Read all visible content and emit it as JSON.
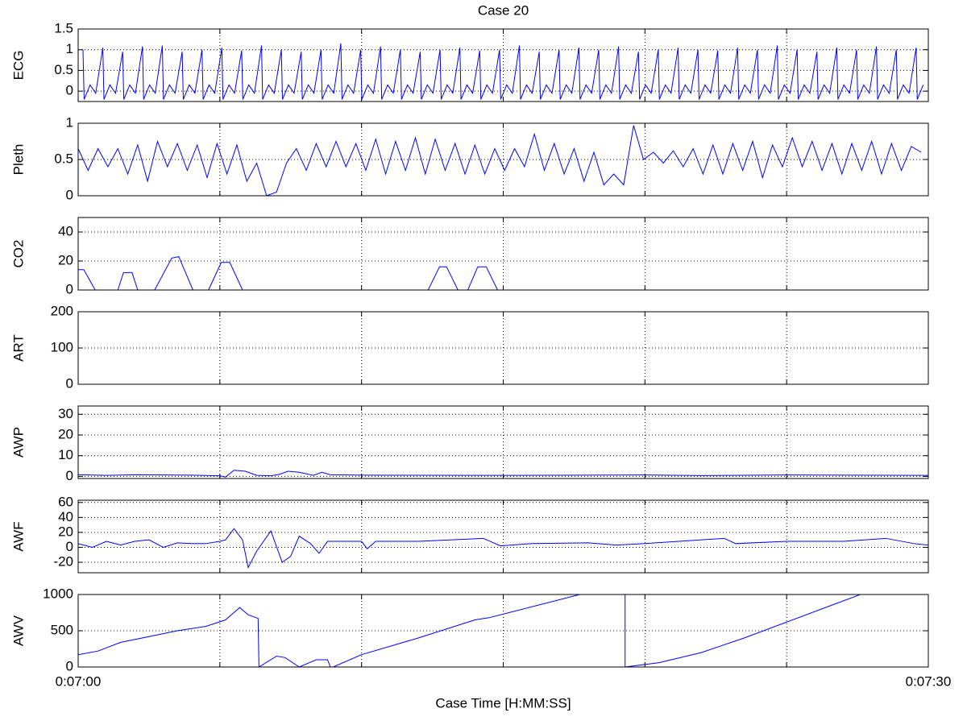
{
  "chart_data": [
    {
      "type": "line",
      "title": "Case 20",
      "ylabel": "ECG",
      "color": "#0000ff",
      "xlim": [
        0,
        30
      ],
      "xgrid": [
        5,
        10,
        15,
        20,
        25
      ],
      "ylim": [
        -0.25,
        1.5
      ],
      "yticks": [
        0,
        0.5,
        1,
        1.5
      ],
      "grid": true,
      "x": [
        0.17,
        0.21,
        0.42,
        0.62,
        0.87,
        0.91,
        1.12,
        1.32,
        1.57,
        1.61,
        1.82,
        2.02,
        2.27,
        2.31,
        2.52,
        2.72,
        2.97,
        3.01,
        3.22,
        3.42,
        3.67,
        3.71,
        3.92,
        4.12,
        4.37,
        4.41,
        4.62,
        4.82,
        5.07,
        5.11,
        5.32,
        5.52,
        5.77,
        5.81,
        6.02,
        6.22,
        6.47,
        6.51,
        6.72,
        6.92,
        7.17,
        7.21,
        7.42,
        7.62,
        7.87,
        7.91,
        8.12,
        8.32,
        8.57,
        8.61,
        8.82,
        9.02,
        9.27,
        9.31,
        9.52,
        9.72,
        9.97,
        10.01,
        10.22,
        10.42,
        10.67,
        10.71,
        10.92,
        11.12,
        11.37,
        11.41,
        11.62,
        11.82,
        12.07,
        12.11,
        12.32,
        12.52,
        12.77,
        12.81,
        13.02,
        13.22,
        13.47,
        13.51,
        13.72,
        13.92,
        14.17,
        14.21,
        14.42,
        14.62,
        14.87,
        14.91,
        15.12,
        15.32,
        15.57,
        15.61,
        15.82,
        16.02,
        16.27,
        16.31,
        16.52,
        16.72,
        16.97,
        17.01,
        17.22,
        17.42,
        17.67,
        17.71,
        17.92,
        18.12,
        18.37,
        18.41,
        18.62,
        18.82,
        19.07,
        19.11,
        19.32,
        19.52,
        19.77,
        19.81,
        20.02,
        20.22,
        20.47,
        20.51,
        20.72,
        20.92,
        21.17,
        21.21,
        21.42,
        21.62,
        21.87,
        21.91,
        22.12,
        22.32,
        22.57,
        22.61,
        22.82,
        23.02,
        23.27,
        23.31,
        23.52,
        23.72,
        23.97,
        24.01,
        24.22,
        24.42,
        24.67,
        24.71,
        24.92,
        25.12,
        25.37,
        25.41,
        25.62,
        25.82,
        26.07,
        26.11,
        26.32,
        26.52,
        26.77,
        26.81,
        27.02,
        27.22,
        27.47,
        27.51,
        27.72,
        27.92,
        28.17,
        28.21,
        28.42,
        28.62,
        28.87,
        28.91,
        29.12,
        29.32,
        29.57,
        29.61,
        29.82
      ],
      "values": [
        1.0,
        -0.2,
        0.15,
        -0.05,
        1.05,
        -0.2,
        0.15,
        -0.05,
        0.95,
        -0.2,
        0.15,
        -0.05,
        1.08,
        -0.2,
        0.15,
        -0.05,
        1.1,
        -0.2,
        0.15,
        -0.05,
        0.95,
        -0.2,
        0.15,
        -0.05,
        1.0,
        -0.2,
        0.15,
        -0.05,
        1.05,
        -0.2,
        0.15,
        -0.05,
        0.98,
        -0.2,
        0.15,
        -0.05,
        1.1,
        -0.2,
        0.15,
        -0.05,
        1.0,
        -0.2,
        0.15,
        -0.05,
        0.95,
        -0.2,
        0.15,
        -0.05,
        1.0,
        -0.2,
        0.15,
        -0.05,
        1.15,
        -0.2,
        0.15,
        -0.05,
        1.0,
        -0.2,
        0.15,
        -0.05,
        1.08,
        -0.2,
        0.15,
        -0.05,
        1.0,
        -0.2,
        0.15,
        -0.05,
        0.95,
        -0.2,
        0.15,
        -0.05,
        1.0,
        -0.2,
        0.15,
        -0.05,
        1.05,
        -0.2,
        0.15,
        -0.05,
        0.98,
        -0.2,
        0.15,
        -0.05,
        1.0,
        -0.2,
        0.15,
        -0.05,
        1.1,
        -0.2,
        0.15,
        -0.05,
        0.95,
        -0.2,
        0.15,
        -0.05,
        1.0,
        -0.2,
        0.15,
        -0.05,
        1.05,
        -0.2,
        0.15,
        -0.05,
        1.0,
        -0.2,
        0.15,
        -0.05,
        1.08,
        -0.2,
        0.15,
        -0.05,
        0.95,
        -0.2,
        0.15,
        -0.05,
        1.0,
        -0.2,
        0.15,
        -0.05,
        1.05,
        -0.2,
        0.15,
        -0.05,
        1.0,
        -0.2,
        0.15,
        -0.05,
        0.98,
        -0.2,
        0.15,
        -0.05,
        1.05,
        -0.2,
        0.15,
        -0.05,
        1.0,
        -0.2,
        0.15,
        -0.05,
        1.1,
        -0.2,
        0.15,
        -0.05,
        1.0,
        -0.2,
        0.15,
        -0.05,
        0.95,
        -0.2,
        0.15,
        -0.05,
        1.05,
        -0.2,
        0.15,
        -0.05,
        1.0,
        -0.2,
        0.15,
        -0.05,
        1.08,
        -0.2,
        0.15,
        -0.05,
        1.0,
        -0.2,
        0.15,
        -0.05,
        1.05,
        -0.2,
        0.15
      ]
    },
    {
      "type": "line",
      "ylabel": "Pleth",
      "color": "#0000ff",
      "xlim": [
        0,
        30
      ],
      "xgrid": [
        5,
        10,
        15,
        20,
        25
      ],
      "ylim": [
        0,
        1
      ],
      "yticks": [
        0,
        0.5,
        1
      ],
      "grid": true,
      "x": [
        0,
        0.35,
        0.7,
        1.05,
        1.4,
        1.75,
        2.1,
        2.45,
        2.8,
        3.15,
        3.5,
        3.85,
        4.2,
        4.55,
        4.9,
        5.25,
        5.6,
        5.95,
        6.3,
        6.65,
        7,
        7.35,
        7.7,
        8.05,
        8.4,
        8.75,
        9.1,
        9.45,
        9.8,
        10.15,
        10.5,
        10.85,
        11.2,
        11.55,
        11.9,
        12.25,
        12.6,
        12.95,
        13.3,
        13.65,
        14,
        14.35,
        14.7,
        15.05,
        15.4,
        15.75,
        16.1,
        16.45,
        16.8,
        17.15,
        17.5,
        17.85,
        18.2,
        18.55,
        18.9,
        19.25,
        19.6,
        19.95,
        20.3,
        20.65,
        21,
        21.35,
        21.7,
        22.05,
        22.4,
        22.75,
        23.1,
        23.45,
        23.8,
        24.15,
        24.5,
        24.85,
        25.2,
        25.55,
        25.9,
        26.25,
        26.6,
        26.95,
        27.3,
        27.65,
        28,
        28.35,
        28.7,
        29.05,
        29.4,
        29.75
      ],
      "values": [
        0.65,
        0.35,
        0.65,
        0.4,
        0.65,
        0.3,
        0.7,
        0.2,
        0.75,
        0.4,
        0.72,
        0.35,
        0.7,
        0.25,
        0.72,
        0.3,
        0.7,
        0.2,
        0.45,
        0.0,
        0.05,
        0.45,
        0.65,
        0.35,
        0.72,
        0.4,
        0.75,
        0.4,
        0.72,
        0.35,
        0.78,
        0.3,
        0.75,
        0.35,
        0.8,
        0.3,
        0.78,
        0.35,
        0.72,
        0.3,
        0.7,
        0.3,
        0.65,
        0.35,
        0.65,
        0.4,
        0.85,
        0.35,
        0.72,
        0.3,
        0.65,
        0.2,
        0.6,
        0.15,
        0.3,
        0.15,
        0.97,
        0.5,
        0.6,
        0.45,
        0.62,
        0.4,
        0.65,
        0.3,
        0.7,
        0.3,
        0.72,
        0.35,
        0.75,
        0.25,
        0.7,
        0.4,
        0.8,
        0.4,
        0.75,
        0.35,
        0.72,
        0.3,
        0.72,
        0.35,
        0.75,
        0.3,
        0.72,
        0.35,
        0.68,
        0.6
      ]
    },
    {
      "type": "line",
      "ylabel": "CO2",
      "color": "#0000ff",
      "xlim": [
        0,
        30
      ],
      "xgrid": [
        5,
        10,
        15,
        20,
        25
      ],
      "ylim": [
        0,
        50
      ],
      "yticks": [
        0,
        20,
        40
      ],
      "grid": true,
      "x": [
        0,
        0.2,
        0.6,
        1.4,
        1.6,
        1.9,
        2.1,
        2.7,
        3.3,
        3.55,
        4.05,
        4.6,
        5.05,
        5.35,
        5.8,
        12.35,
        12.75,
        13.0,
        13.4,
        13.75,
        14.1,
        14.4,
        14.8,
        30
      ],
      "values": [
        14,
        14,
        0,
        0,
        12,
        12,
        0,
        0,
        22,
        23,
        0,
        0,
        19,
        19,
        0,
        0,
        16,
        16,
        0,
        0,
        16,
        16,
        0,
        0
      ]
    },
    {
      "type": "line",
      "ylabel": "ART",
      "color": "#0000ff",
      "xlim": [
        0,
        30
      ],
      "xgrid": [
        5,
        10,
        15,
        20,
        25
      ],
      "ylim": [
        0,
        200
      ],
      "yticks": [
        0,
        100,
        200
      ],
      "grid": true
    },
    {
      "type": "line",
      "ylabel": "AWP",
      "color": "#0000ff",
      "xlim": [
        0,
        30
      ],
      "xgrid": [
        5,
        10,
        15,
        20,
        25
      ],
      "ylim": [
        -1,
        34
      ],
      "yticks": [
        0,
        10,
        20,
        30
      ],
      "grid": true,
      "x": [
        0,
        1,
        2,
        3,
        4,
        5,
        5.2,
        5.5,
        5.9,
        6.3,
        6.8,
        7.1,
        7.4,
        7.8,
        8.3,
        8.6,
        8.9,
        10,
        15,
        20,
        22,
        25,
        30
      ],
      "values": [
        0.8,
        0.5,
        0.8,
        0.7,
        0.6,
        0.3,
        -0.3,
        3,
        2.5,
        0.5,
        0.3,
        1,
        2.5,
        2,
        0.5,
        2,
        0.8,
        0.6,
        0.5,
        0.7,
        0.4,
        0.7,
        0.5
      ]
    },
    {
      "type": "line",
      "ylabel": "AWF",
      "color": "#0000ff",
      "xlim": [
        0,
        30
      ],
      "xgrid": [
        5,
        10,
        15,
        20,
        25
      ],
      "ylim": [
        -34,
        63
      ],
      "yticks": [
        -20,
        0,
        20,
        40,
        60
      ],
      "grid": true,
      "x": [
        0,
        0.5,
        1,
        1.5,
        2,
        2.5,
        3,
        3.5,
        4,
        4.5,
        5,
        5.2,
        5.5,
        5.8,
        6.0,
        6.3,
        6.8,
        7.2,
        7.5,
        7.8,
        8.2,
        8.5,
        8.8,
        10,
        10.2,
        10.5,
        12,
        14.3,
        14.9,
        16,
        18,
        19,
        20,
        22.8,
        23.2,
        25,
        27,
        28.5,
        29.5,
        30
      ],
      "values": [
        5,
        0,
        8,
        3,
        8,
        10,
        0,
        6,
        5,
        5,
        8,
        10,
        25,
        10,
        -27,
        -5,
        22,
        -20,
        -12,
        15,
        5,
        -8,
        8,
        8,
        -2,
        8,
        8,
        12,
        2,
        5,
        6,
        3,
        5,
        12,
        5,
        8,
        8,
        12,
        5,
        3
      ]
    },
    {
      "type": "line",
      "ylabel": "AWV",
      "xlabel": "Case Time [H:MM:SS]",
      "color": "#0000ff",
      "xlim": [
        0,
        30
      ],
      "xgrid": [
        5,
        10,
        15,
        20,
        25
      ],
      "xticks": [
        {
          "value": 0,
          "label": "0:07:00"
        },
        {
          "value": 30,
          "label": "0:07:30"
        }
      ],
      "ylim": [
        0,
        1000
      ],
      "yticks": [
        0,
        500,
        1000
      ],
      "grid": true,
      "x": [
        0,
        0.7,
        1.5,
        2.5,
        3.5,
        4.5,
        5.2,
        5.7,
        6.0,
        6.35,
        6.38,
        7.0,
        7.3,
        7.8,
        8.4,
        8.8,
        8.9,
        9.0,
        10.0,
        12.0,
        14.0,
        14.5,
        17.7,
        18.5,
        19.3,
        19.3,
        20.5,
        22.0,
        23.5,
        27.6,
        30
      ],
      "values": [
        170,
        220,
        340,
        420,
        500,
        560,
        650,
        820,
        720,
        670,
        0,
        150,
        130,
        0,
        100,
        100,
        0,
        0,
        170,
        400,
        650,
        680,
        1000,
        null,
        1000,
        0,
        60,
        200,
        400,
        1000,
        null
      ]
    }
  ]
}
